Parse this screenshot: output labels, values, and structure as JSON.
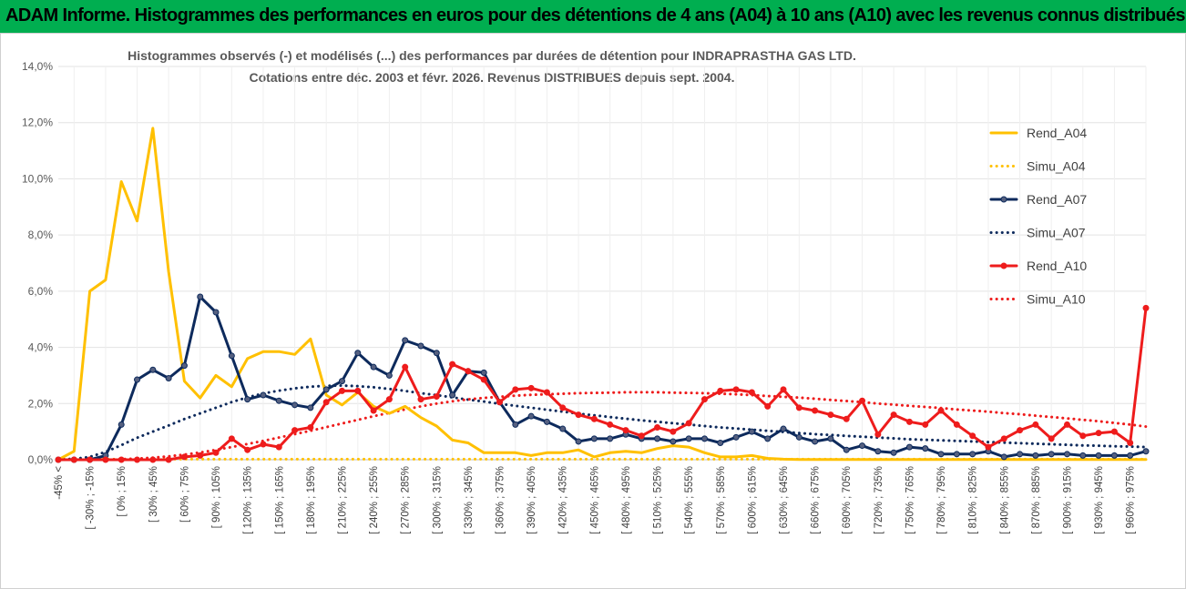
{
  "header": {
    "title": "ADAM Informe. Histogrammes des performances en euros pour des détentions de 4 ans (A04) à 10 ans (A10) avec les revenus connus distribués"
  },
  "chart_data": {
    "type": "line",
    "title_line1": "Histogrammes observés (-) et modélisés (...) des performances par durées de détention pour INDRAPRASTHA GAS LTD.",
    "title_line2": "Cotations entre déc. 2003 et févr. 2026. Revenus DISTRIBUES depuis sept. 2004.",
    "ylim": [
      0,
      14
    ],
    "y_ticks": [
      "0,0%",
      "2,0%",
      "4,0%",
      "6,0%",
      "8,0%",
      "10,0%",
      "12,0%",
      "14,0%"
    ],
    "x_tick_labels": [
      "-45% <",
      "[ -30% ; -15%",
      "[ 0% ; 15%",
      "[ 30% ; 45%",
      "[ 60% ; 75%",
      "[ 90% ; 105%",
      "[ 120% ; 135%",
      "[ 150% ; 165%",
      "[ 180% ; 195%",
      "[ 210% ; 225%",
      "[ 240% ; 255%",
      "[ 270% ; 285%",
      "[ 300% ; 315%",
      "[ 330% ; 345%",
      "[ 360% ; 375%",
      "[ 390% ; 405%",
      "[ 420% ; 435%",
      "[ 450% ; 465%",
      "[ 480% ; 495%",
      "[ 510% ; 525%",
      "[ 540% ; 555%",
      "[ 570% ; 585%",
      "[ 600% ; 615%",
      "[ 630% ; 645%",
      "[ 660% ; 675%",
      "[ 690% ; 705%",
      "[ 720% ; 735%",
      "[ 750% ; 765%",
      "[ 780% ; 795%",
      "[ 810% ; 825%",
      "[ 840% ; 855%",
      "[ 870% ; 885%",
      "[ 900% ; 915%",
      "[ 930% ; 945%",
      "[ 960% ; 975%"
    ],
    "n_bins": 70,
    "legend": [
      "Rend_A04",
      "Simu_A04",
      "Rend_A07",
      "Simu_A07",
      "Rend_A10",
      "Simu_A10"
    ],
    "series": [
      {
        "name": "Rend_A04",
        "color": "#ffc000",
        "style": "solid",
        "markers": false,
        "values": [
          0,
          0.3,
          6.0,
          6.4,
          9.9,
          8.5,
          11.8,
          6.7,
          2.8,
          2.2,
          3.0,
          2.6,
          3.6,
          3.85,
          3.85,
          3.75,
          4.3,
          2.3,
          1.95,
          2.4,
          1.9,
          1.65,
          1.9,
          1.5,
          1.2,
          0.7,
          0.6,
          0.25,
          0.25,
          0.25,
          0.15,
          0.25,
          0.25,
          0.35,
          0.1,
          0.25,
          0.3,
          0.25,
          0.4,
          0.5,
          0.45,
          0.25,
          0.1,
          0.1,
          0.15,
          0.05,
          0.02,
          0.01,
          0.01,
          0.01,
          0.01,
          0.01,
          0.01,
          0.01,
          0.01,
          0.01,
          0.01,
          0.01,
          0.01,
          0.01,
          0.01,
          0.01,
          0.01,
          0.01,
          0.01,
          0.01,
          0.01,
          0.01,
          0.01,
          0.01
        ]
      },
      {
        "name": "Simu_A04",
        "color": "#ffc000",
        "style": "dotted",
        "values": [
          0.02,
          0.02,
          0.02,
          0.02,
          0.02,
          0.02,
          0.02,
          0.02,
          0.02,
          0.02,
          0.02,
          0.02,
          0.02,
          0.02,
          0.02,
          0.02,
          0.02,
          0.02,
          0.02,
          0.02,
          0.02,
          0.02,
          0.02,
          0.02,
          0.02,
          0.02,
          0.02,
          0.02,
          0.02,
          0.02,
          0.02,
          0.02,
          0.02,
          0.02,
          0.02,
          0.02,
          0.02,
          0.02,
          0.02,
          0.02,
          0.02,
          0.02,
          0.02,
          0.02,
          0.02,
          0.02,
          0.02,
          0.02,
          0.02,
          0.02,
          0.02,
          0.02,
          0.02,
          0.02,
          0.02,
          0.02,
          0.02,
          0.02,
          0.02,
          0.02,
          0.02,
          0.02,
          0.02,
          0.02,
          0.02,
          0.02,
          0.02,
          0.02,
          0.02,
          0.02
        ]
      },
      {
        "name": "Rend_A07",
        "color": "#0d2a5c",
        "style": "solid",
        "markers": true,
        "values": [
          0,
          0,
          0,
          0.15,
          1.25,
          2.85,
          3.2,
          2.9,
          3.35,
          5.8,
          5.25,
          3.7,
          2.15,
          2.3,
          2.1,
          1.95,
          1.85,
          2.5,
          2.8,
          3.8,
          3.3,
          3.0,
          4.25,
          4.05,
          3.8,
          2.3,
          3.15,
          3.1,
          2.05,
          1.25,
          1.55,
          1.35,
          1.1,
          0.65,
          0.75,
          0.75,
          0.9,
          0.75,
          0.75,
          0.65,
          0.75,
          0.75,
          0.6,
          0.8,
          1.0,
          0.75,
          1.1,
          0.8,
          0.65,
          0.75,
          0.35,
          0.5,
          0.3,
          0.25,
          0.45,
          0.4,
          0.2,
          0.2,
          0.2,
          0.3,
          0.1,
          0.2,
          0.15,
          0.2,
          0.2,
          0.15,
          0.15,
          0.15,
          0.15,
          0.3
        ]
      },
      {
        "name": "Simu_A07",
        "color": "#0d2a5c",
        "style": "dotted",
        "values": [
          0.02,
          0.03,
          0.1,
          0.28,
          0.52,
          0.78,
          1.0,
          1.22,
          1.45,
          1.65,
          1.85,
          2.05,
          2.22,
          2.36,
          2.46,
          2.54,
          2.6,
          2.63,
          2.64,
          2.62,
          2.58,
          2.52,
          2.45,
          2.37,
          2.3,
          2.22,
          2.14,
          2.07,
          1.99,
          1.92,
          1.85,
          1.78,
          1.71,
          1.64,
          1.58,
          1.52,
          1.46,
          1.4,
          1.35,
          1.3,
          1.25,
          1.2,
          1.15,
          1.11,
          1.07,
          1.03,
          0.99,
          0.95,
          0.91,
          0.88,
          0.85,
          0.82,
          0.79,
          0.76,
          0.73,
          0.71,
          0.69,
          0.67,
          0.65,
          0.63,
          0.61,
          0.59,
          0.57,
          0.55,
          0.53,
          0.51,
          0.5,
          0.48,
          0.47,
          0.45
        ]
      },
      {
        "name": "Rend_A10",
        "color": "#ee1c1c",
        "style": "solid",
        "markers": true,
        "values": [
          0,
          0,
          0,
          0,
          0,
          0,
          0,
          0,
          0.1,
          0.15,
          0.25,
          0.75,
          0.35,
          0.55,
          0.45,
          1.05,
          1.15,
          2.05,
          2.45,
          2.45,
          1.75,
          2.15,
          3.3,
          2.15,
          2.25,
          3.4,
          3.15,
          2.85,
          2.05,
          2.5,
          2.55,
          2.4,
          1.85,
          1.6,
          1.45,
          1.25,
          1.05,
          0.85,
          1.15,
          1.0,
          1.3,
          2.15,
          2.45,
          2.5,
          2.4,
          1.9,
          2.5,
          1.85,
          1.75,
          1.6,
          1.45,
          2.1,
          0.9,
          1.6,
          1.35,
          1.25,
          1.75,
          1.25,
          0.85,
          0.45,
          0.75,
          1.05,
          1.25,
          0.75,
          1.25,
          0.85,
          0.95,
          1.0,
          0.6,
          5.4
        ]
      },
      {
        "name": "Simu_A10",
        "color": "#ee1c1c",
        "style": "dotted",
        "values": [
          0.0,
          0.0,
          0.0,
          0.0,
          0.02,
          0.04,
          0.07,
          0.12,
          0.18,
          0.26,
          0.35,
          0.45,
          0.56,
          0.67,
          0.79,
          0.91,
          1.03,
          1.16,
          1.29,
          1.42,
          1.55,
          1.67,
          1.79,
          1.9,
          2.0,
          2.08,
          2.15,
          2.2,
          2.24,
          2.28,
          2.31,
          2.33,
          2.35,
          2.37,
          2.38,
          2.39,
          2.4,
          2.4,
          2.4,
          2.39,
          2.38,
          2.37,
          2.35,
          2.33,
          2.3,
          2.27,
          2.24,
          2.21,
          2.17,
          2.13,
          2.09,
          2.05,
          2.0,
          1.96,
          1.92,
          1.88,
          1.84,
          1.79,
          1.75,
          1.71,
          1.66,
          1.62,
          1.57,
          1.52,
          1.47,
          1.42,
          1.37,
          1.31,
          1.25,
          1.18
        ]
      }
    ]
  }
}
